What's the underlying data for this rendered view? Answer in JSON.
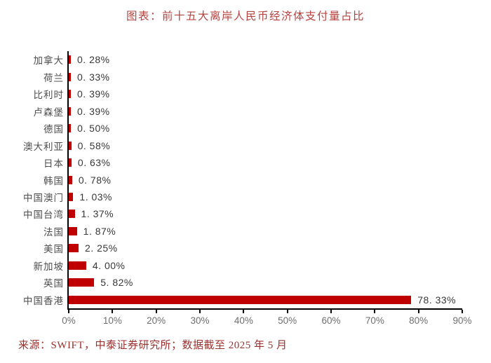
{
  "title": "图表：前十五大离岸人民币经济体支付量占比",
  "source": "来源：SWIFT，中泰证券研究所；数据截至 2025 年 5 月",
  "colors": {
    "bar": "#c00000",
    "title_text": "#b5433f",
    "source_text": "#9c2f2b",
    "category_label": "#4e4e4e",
    "value_label": "#383838",
    "axis_line": "#000000",
    "axis_tick_label": "#6e6e6e"
  },
  "chart_data": {
    "type": "bar",
    "orientation": "horizontal",
    "title": "图表：前十五大离岸人民币经济体支付量占比",
    "categories": [
      "加拿大",
      "荷兰",
      "比利时",
      "卢森堡",
      "德国",
      "澳大利亚",
      "日本",
      "韩国",
      "中国澳门",
      "中国台湾",
      "法国",
      "美国",
      "新加坡",
      "英国",
      "中国香港"
    ],
    "values": [
      0.28,
      0.33,
      0.39,
      0.39,
      0.5,
      0.58,
      0.63,
      0.78,
      1.03,
      1.37,
      1.87,
      2.25,
      4.0,
      5.82,
      78.33
    ],
    "value_labels": [
      "0. 28%",
      "0. 33%",
      "0. 39%",
      "0. 39%",
      "0. 50%",
      "0. 58%",
      "0. 63%",
      "0. 78%",
      "1. 03%",
      "1. 37%",
      "1. 87%",
      "2. 25%",
      "4. 00%",
      "5. 82%",
      "78. 33%"
    ],
    "xlim": [
      0,
      90
    ],
    "x_tick_labels": [
      "0%",
      "10%",
      "20%",
      "30%",
      "40%",
      "50%",
      "60%",
      "70%",
      "80%",
      "90%"
    ],
    "unit": "%",
    "grid": false,
    "legend": false,
    "bar_color": "#c00000"
  }
}
